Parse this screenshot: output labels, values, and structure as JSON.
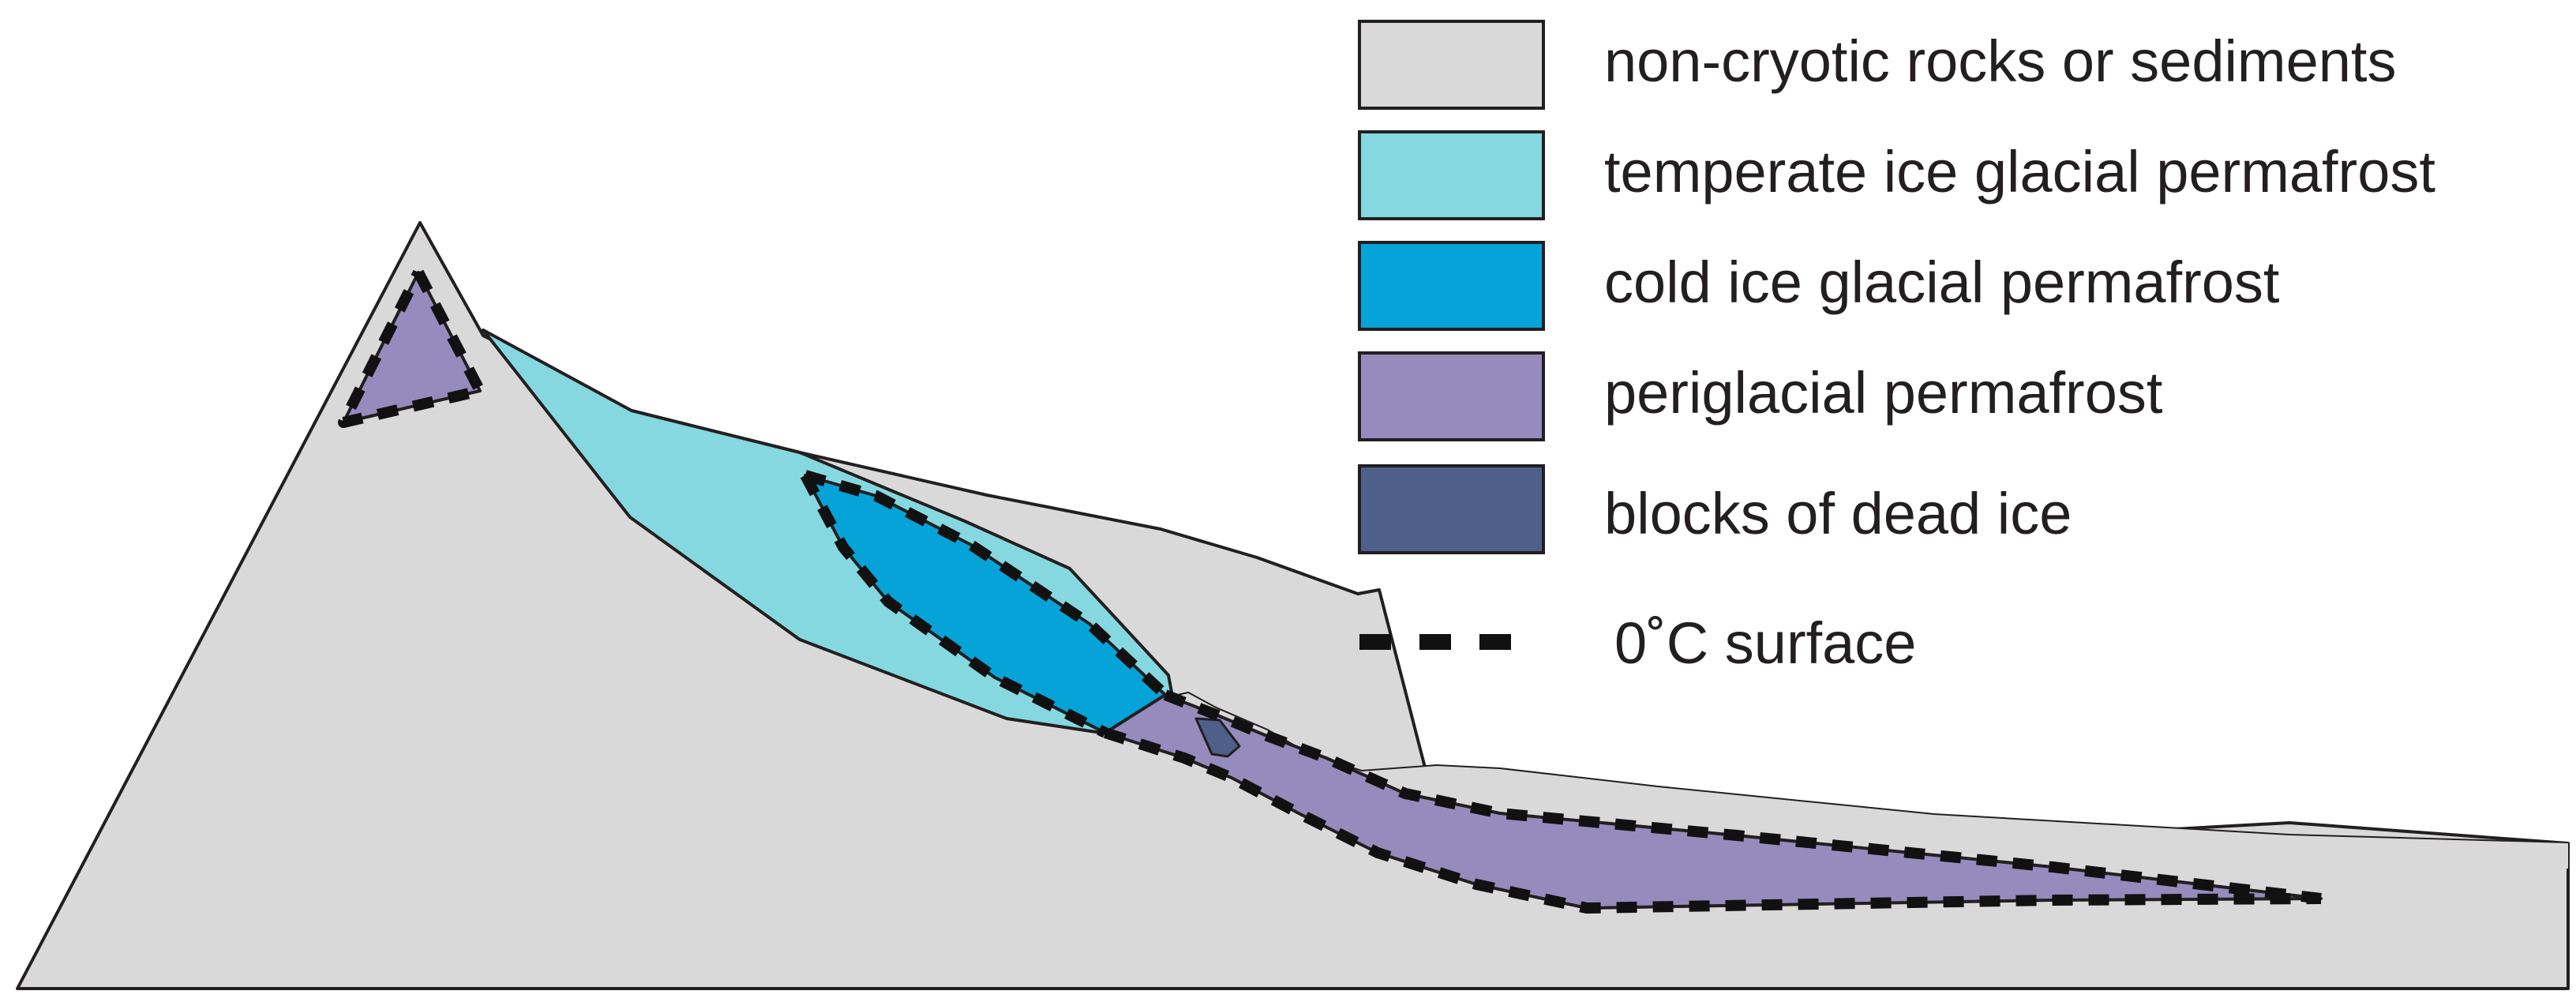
{
  "legend": {
    "items": [
      {
        "key": "non-cryotic",
        "label": "non-cryotic rocks or sediments",
        "color": "#d9d9d9"
      },
      {
        "key": "temperate-ice",
        "label": "temperate ice glacial permafrost",
        "color": "#85d8e0"
      },
      {
        "key": "cold-ice",
        "label": "cold ice glacial permafrost",
        "color": "#05a3d8"
      },
      {
        "key": "periglacial",
        "label": "periglacial permafrost",
        "color": "#958bbd"
      },
      {
        "key": "dead-ice",
        "label": "blocks of dead ice",
        "color": "#4e5f89"
      }
    ],
    "zero_surface_label": "0˚C surface"
  },
  "colors": {
    "outline": "#231f20",
    "dashes": "#111111"
  }
}
